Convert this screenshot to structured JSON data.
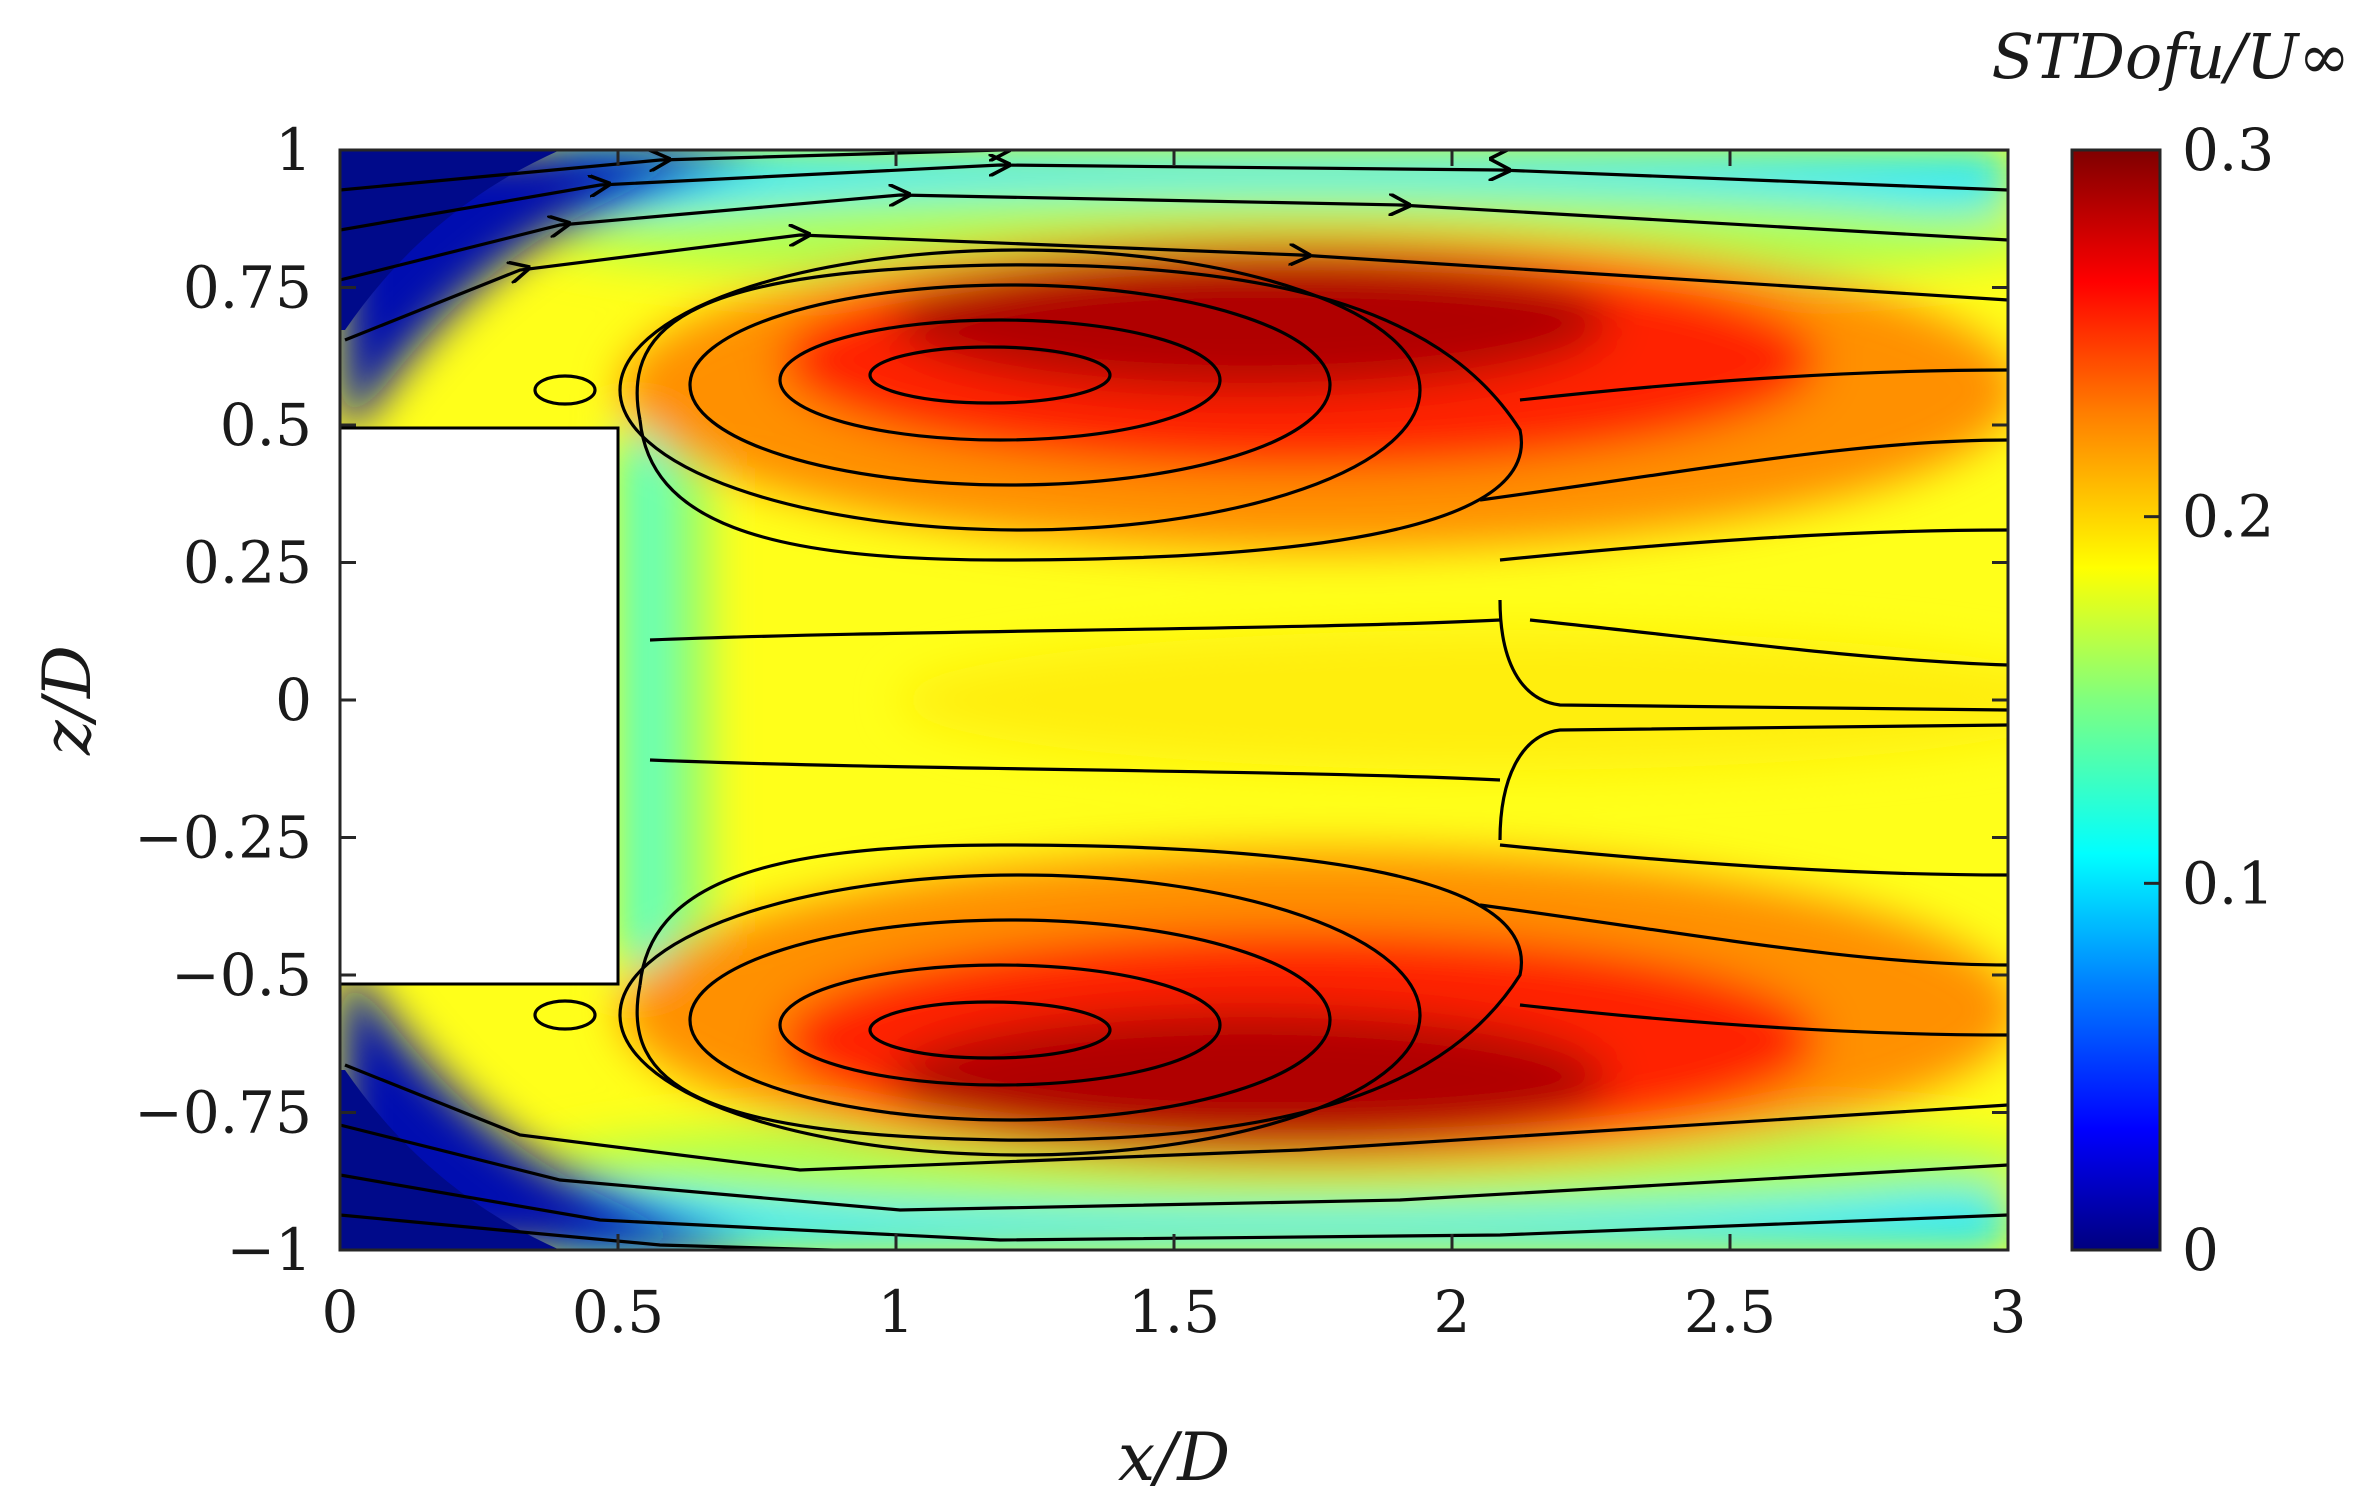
{
  "chart_data": {
    "type": "heatmap",
    "title": "",
    "xlabel": "x/D",
    "ylabel": "z/D",
    "colorbar_label": "STDofu/U∞",
    "xlim": [
      0,
      3
    ],
    "ylim": [
      -1,
      1
    ],
    "clim": [
      0,
      0.3
    ],
    "x_ticks": [
      0,
      0.5,
      1,
      1.5,
      2,
      2.5,
      3
    ],
    "x_tick_labels": [
      "0",
      "0.5",
      "1",
      "1.5",
      "2",
      "2.5",
      "3"
    ],
    "y_ticks": [
      1,
      0.75,
      0.5,
      0.25,
      0,
      -0.25,
      -0.5,
      -0.75,
      -1
    ],
    "y_tick_labels": [
      "1",
      "0.75",
      "0.5",
      "0.25",
      "0",
      "−0.25",
      "−0.5",
      "−0.75",
      "−1"
    ],
    "cbar_ticks": [
      0.3,
      0.2,
      0.1,
      0
    ],
    "cbar_tick_labels": [
      "0.3",
      "0.2",
      "0.1",
      "0"
    ],
    "colormap": "jet",
    "colormap_stops": [
      "#00007f",
      "#0000ff",
      "#007fff",
      "#00ffff",
      "#7fff7f",
      "#ffff00",
      "#ff7f00",
      "#ff0000",
      "#7f0000"
    ],
    "body_region": {
      "x": [
        0,
        0.5
      ],
      "z": [
        -0.5,
        0.5
      ]
    },
    "peak_regions": [
      {
        "label": "upper vortex",
        "x": 1.2,
        "z": 0.58,
        "value": 0.3
      },
      {
        "label": "lower vortex",
        "x": 1.2,
        "z": -0.58,
        "value": 0.3
      }
    ],
    "overlay": "streamlines"
  }
}
